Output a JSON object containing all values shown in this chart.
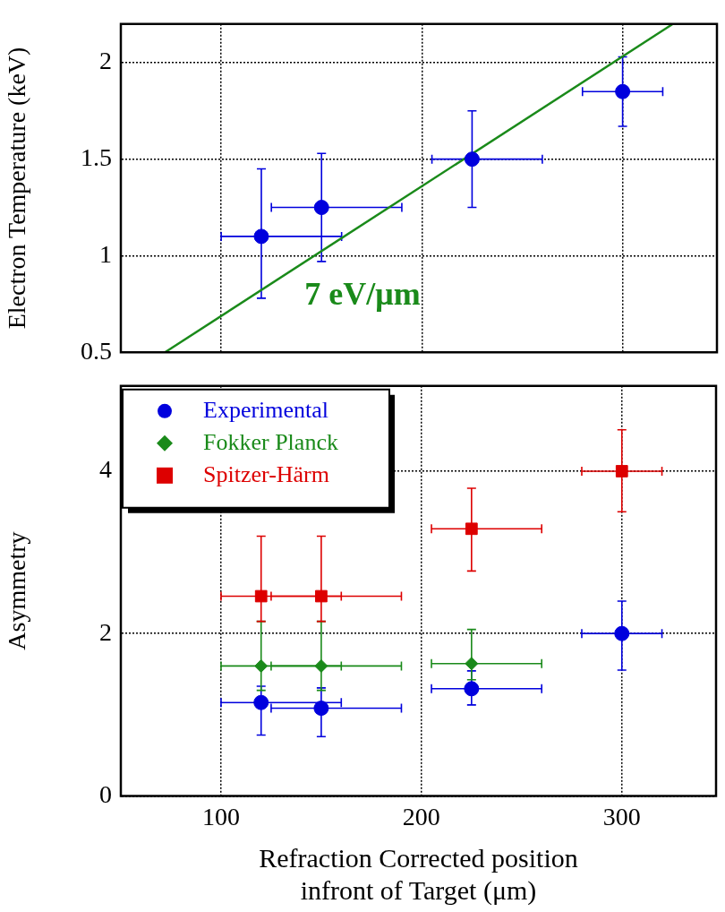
{
  "chart_data": [
    {
      "type": "scatter",
      "ylabel": "Electron Temperature (keV)",
      "xlim": [
        50,
        347
      ],
      "xticks": [
        100,
        200,
        300
      ],
      "ylim": [
        0.5,
        2.2
      ],
      "yticks": [
        0.5,
        1,
        1.5,
        2
      ],
      "grid": true,
      "legend": false,
      "tick_labels": "y",
      "annotations": [
        "7 eV/μm"
      ],
      "series": [
        {
          "color": "#0000dd",
          "marker": "circle",
          "x": [
            120,
            150,
            225,
            300
          ],
          "values": [
            1.1,
            1.25,
            1.5,
            1.85
          ],
          "errors": [
            [
              0.78,
              1.45
            ],
            [
              0.97,
              1.53
            ],
            [
              1.25,
              1.75
            ],
            [
              1.67,
              2.03
            ]
          ],
          "xerrors": [
            [
              100,
              160
            ],
            [
              125,
              190
            ],
            [
              205,
              260
            ],
            [
              280,
              320
            ]
          ]
        },
        {
          "type": "line",
          "color": "#1a8a1a",
          "marker": "none",
          "x": [
            72,
            325
          ],
          "values": [
            0.5,
            2.2
          ]
        }
      ]
    },
    {
      "type": "scatter",
      "xlabel": "Refraction Corrected position\ninfront of Target (μm)",
      "ylabel": "Asymmetry",
      "xlim": [
        50,
        347
      ],
      "xticks": [
        100,
        200,
        300
      ],
      "ylim": [
        0,
        5.05
      ],
      "yticks": [
        0,
        2,
        4
      ],
      "grid": true,
      "legend": "top left",
      "series": [
        {
          "name": "Experimental",
          "color": "#0000dd",
          "marker": "circle",
          "x": [
            120,
            150,
            225,
            300
          ],
          "values": [
            1.15,
            1.08,
            1.32,
            2.0
          ],
          "errors": [
            [
              0.75,
              1.35
            ],
            [
              0.73,
              1.33
            ],
            [
              1.12,
              1.54
            ],
            [
              1.55,
              2.4
            ]
          ],
          "xerrors": [
            [
              100,
              160
            ],
            [
              125,
              190
            ],
            [
              205,
              260
            ],
            [
              280,
              320
            ]
          ]
        },
        {
          "name": "Fokker Planck",
          "color": "#1a8a1a",
          "marker": "diamond",
          "x": [
            120,
            150,
            225
          ],
          "values": [
            1.6,
            1.6,
            1.63
          ],
          "errors": [
            [
              1.3,
              2.15
            ],
            [
              1.3,
              2.15
            ],
            [
              1.43,
              2.05
            ]
          ],
          "xerrors": [
            [
              100,
              160
            ],
            [
              125,
              190
            ],
            [
              205,
              260
            ]
          ]
        },
        {
          "name": "Spitzer-Härm",
          "color": "#dd0000",
          "marker": "square",
          "x": [
            120,
            150,
            225,
            300
          ],
          "values": [
            2.46,
            2.46,
            3.29,
            4.0
          ],
          "errors": [
            [
              2.15,
              3.2
            ],
            [
              2.15,
              3.2
            ],
            [
              2.77,
              3.79
            ],
            [
              3.5,
              4.51
            ]
          ],
          "xerrors": [
            [
              100,
              160
            ],
            [
              125,
              190
            ],
            [
              205,
              260
            ],
            [
              280,
              320
            ]
          ]
        }
      ]
    }
  ]
}
